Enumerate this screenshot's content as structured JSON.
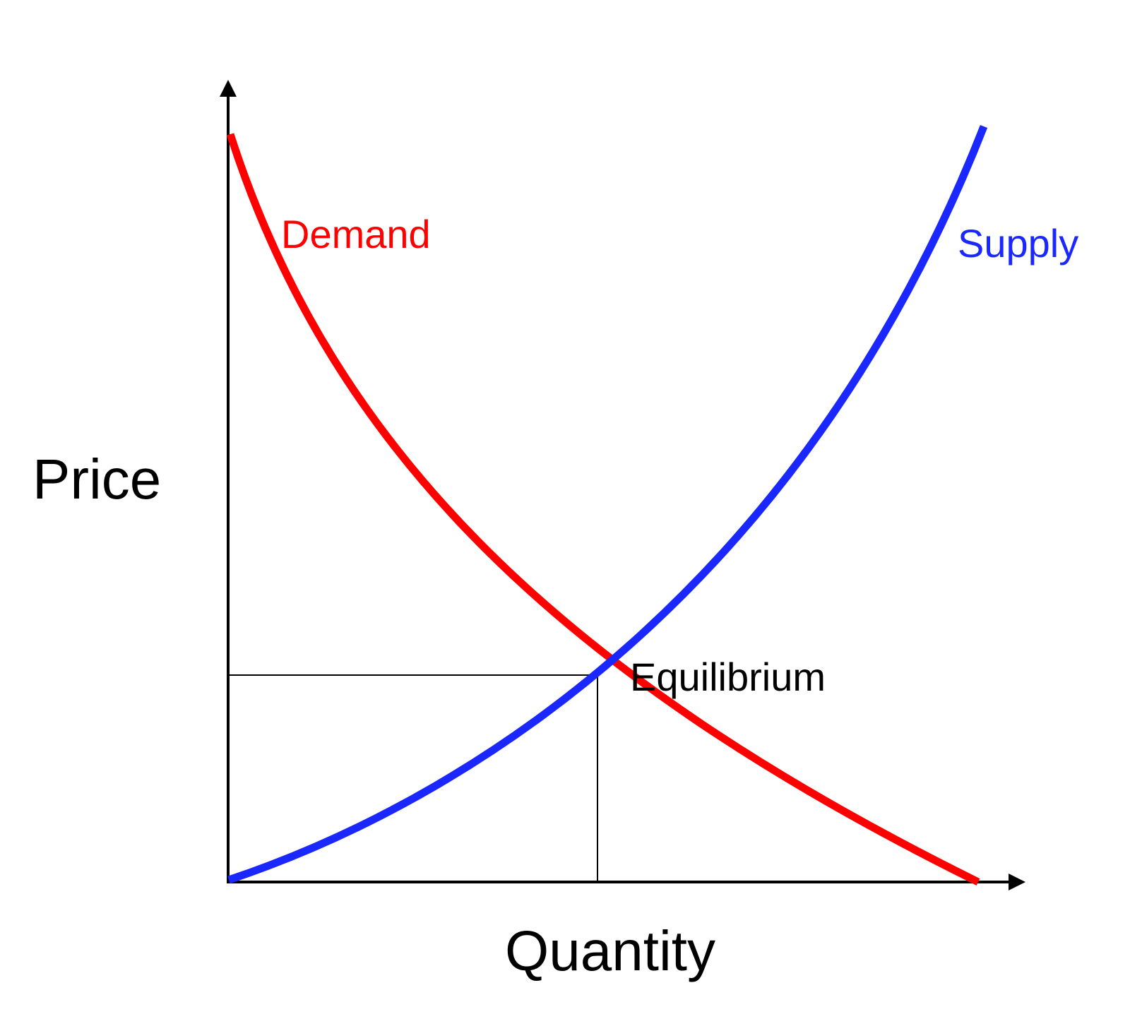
{
  "axes": {
    "y_label": "Price",
    "x_label": "Quantity"
  },
  "curves": [
    {
      "label": "Demand"
    },
    {
      "label": "Supply"
    }
  ],
  "equilibrium": {
    "label": "Equilibrium"
  }
}
